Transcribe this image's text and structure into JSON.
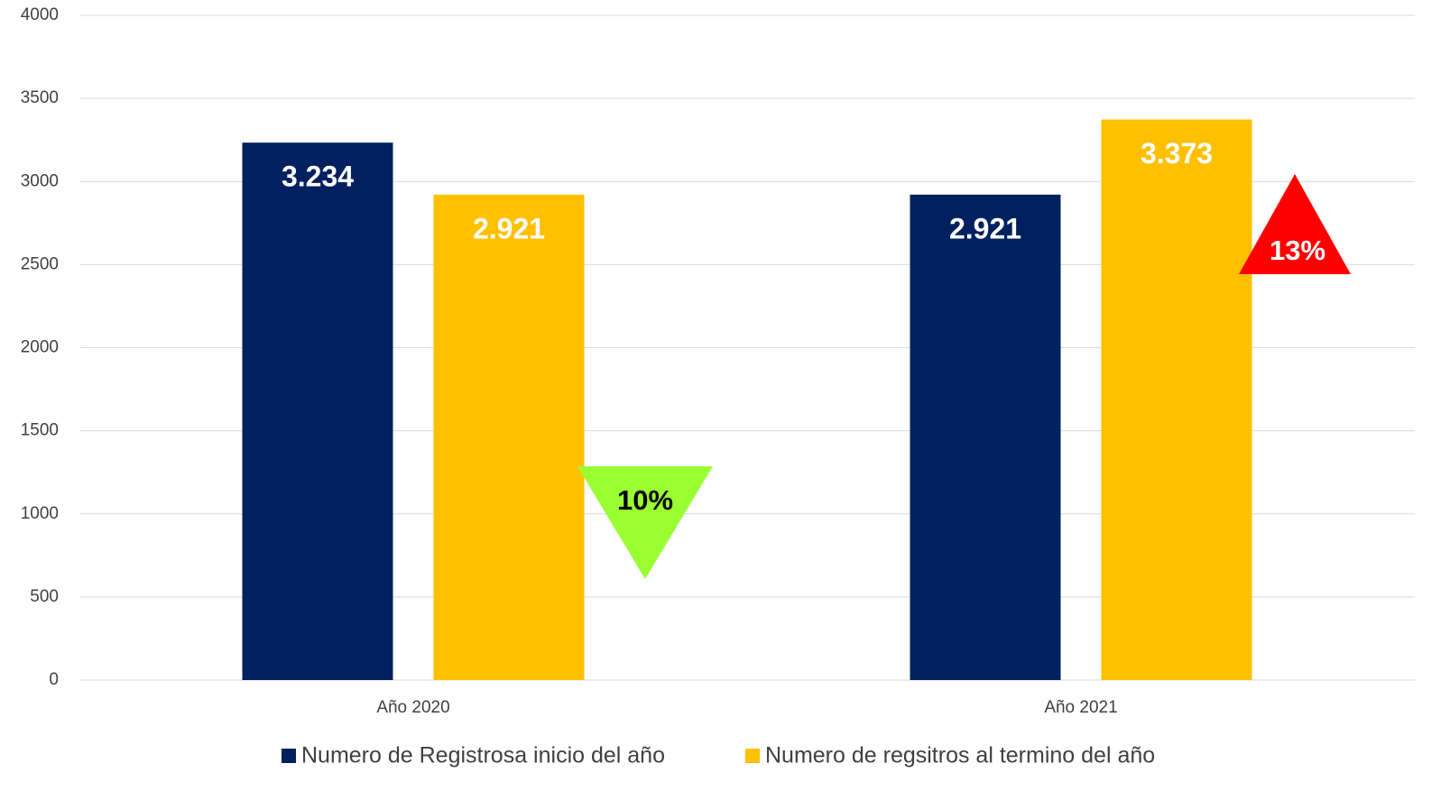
{
  "chart_data": {
    "type": "bar",
    "categories": [
      "Año 2020",
      "Año 2021"
    ],
    "series": [
      {
        "name": "Numero de Registrosa inicio del año",
        "color": "#002060",
        "values": [
          3234,
          2921
        ],
        "value_labels": [
          "3.234",
          "2.921"
        ]
      },
      {
        "name": "Numero de regsitros al termino del año",
        "color": "#ffc000",
        "values": [
          2921,
          3373
        ],
        "value_labels": [
          "2.921",
          "3.373"
        ]
      }
    ],
    "ylim": [
      0,
      4000
    ],
    "yticks": [
      0,
      500,
      1000,
      1500,
      2000,
      2500,
      3000,
      3500,
      4000
    ],
    "grid": true,
    "legend": "bottom",
    "annotations": [
      {
        "text": "10%",
        "color": "#99ff33"
      },
      {
        "text": "13%",
        "color": "#ff0000"
      }
    ]
  }
}
